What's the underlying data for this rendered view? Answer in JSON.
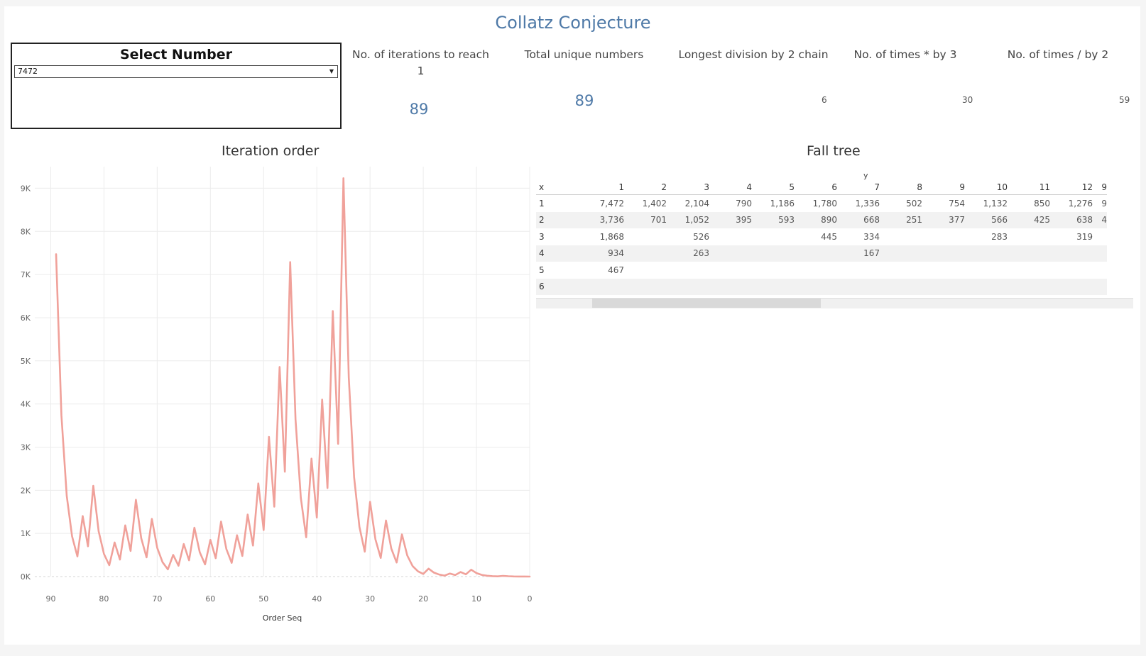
{
  "title": "Collatz Conjecture",
  "selector": {
    "title": "Select Number",
    "value": "7472"
  },
  "kpis": {
    "iterations": {
      "label_line1": "No. of iterations to reach",
      "label_line2": "1",
      "value": "89"
    },
    "unique": {
      "label": "Total unique numbers",
      "value": "89"
    },
    "longest_div2": {
      "label": "Longest division by 2 chain",
      "value": "6"
    },
    "times_mul3": {
      "label": "No. of times * by 3",
      "value": "30"
    },
    "times_div2": {
      "label": "No. of times / by 2",
      "value": "59"
    }
  },
  "line_chart": {
    "title": "Iteration order",
    "xlabel": "Order Seq"
  },
  "fall_tree": {
    "title": "Fall tree",
    "col_axis": "y",
    "row_axis": "x",
    "columns": [
      "1",
      "2",
      "3",
      "4",
      "5",
      "6",
      "7",
      "8",
      "9",
      "10",
      "11",
      "12",
      "9"
    ],
    "rows": [
      {
        "label": "1",
        "cells": [
          "7,472",
          "1,402",
          "2,104",
          "790",
          "1,186",
          "1,780",
          "1,336",
          "502",
          "754",
          "1,132",
          "850",
          "1,276",
          "9"
        ]
      },
      {
        "label": "2",
        "cells": [
          "3,736",
          "701",
          "1,052",
          "395",
          "593",
          "890",
          "668",
          "251",
          "377",
          "566",
          "425",
          "638",
          "4"
        ]
      },
      {
        "label": "3",
        "cells": [
          "1,868",
          "",
          "526",
          "",
          "",
          "445",
          "334",
          "",
          "",
          "283",
          "",
          "319",
          ""
        ]
      },
      {
        "label": "4",
        "cells": [
          "934",
          "",
          "263",
          "",
          "",
          "",
          "167",
          "",
          "",
          "",
          "",
          "",
          ""
        ]
      },
      {
        "label": "5",
        "cells": [
          "467",
          "",
          "",
          "",
          "",
          "",
          "",
          "",
          "",
          "",
          "",
          "",
          ""
        ]
      },
      {
        "label": "6",
        "cells": [
          "",
          "",
          "",
          "",
          "",
          "",
          "",
          "",
          "",
          "",
          "",
          "",
          ""
        ]
      }
    ]
  },
  "chart_data": {
    "type": "line",
    "title": "Iteration order",
    "xlabel": "Order Seq",
    "ylabel": "",
    "xlim": [
      93,
      0
    ],
    "ylim": [
      0,
      9.5
    ],
    "x_ticks": [
      90,
      80,
      70,
      60,
      50,
      40,
      30,
      20,
      10,
      0
    ],
    "x_tick_labels": [
      "90",
      "80",
      "70",
      "60",
      "50",
      "40",
      "30",
      "20",
      "10",
      "0"
    ],
    "y_ticks": [
      0,
      1,
      2,
      3,
      4,
      5,
      6,
      7,
      8,
      9
    ],
    "y_tick_labels": [
      "0K",
      "1K",
      "2K",
      "3K",
      "4K",
      "5K",
      "6K",
      "7K",
      "8K",
      "9K"
    ],
    "grid": true,
    "x": [
      89,
      88,
      87,
      86,
      85,
      84,
      83,
      82,
      81,
      80,
      79,
      78,
      77,
      76,
      75,
      74,
      73,
      72,
      71,
      70,
      69,
      68,
      67,
      66,
      65,
      64,
      63,
      62,
      61,
      60,
      59,
      58,
      57,
      56,
      55,
      54,
      53,
      52,
      51,
      50,
      49,
      48,
      47,
      46,
      45,
      44,
      43,
      42,
      41,
      40,
      39,
      38,
      37,
      36,
      35,
      34,
      33,
      32,
      31,
      30,
      29,
      28,
      27,
      26,
      25,
      24,
      23,
      22,
      21,
      20,
      19,
      18,
      17,
      16,
      15,
      14,
      13,
      12,
      11,
      10,
      9,
      8,
      7,
      6,
      5,
      4,
      3,
      2,
      1,
      0
    ],
    "series": [
      {
        "color": "#f0a19a",
        "values": [
          7.472,
          3.736,
          1.868,
          0.934,
          0.467,
          1.402,
          0.701,
          2.104,
          1.052,
          0.526,
          0.263,
          0.79,
          0.395,
          1.186,
          0.593,
          1.78,
          0.89,
          0.445,
          1.336,
          0.668,
          0.334,
          0.167,
          0.502,
          0.251,
          0.754,
          0.377,
          1.132,
          0.566,
          0.283,
          0.85,
          0.425,
          1.276,
          0.638,
          0.319,
          0.958,
          0.479,
          1.438,
          0.719,
          2.158,
          1.079,
          3.238,
          1.619,
          4.858,
          2.429,
          7.288,
          3.644,
          1.822,
          0.911,
          2.734,
          1.367,
          4.102,
          2.051,
          6.154,
          3.077,
          9.232,
          4.616,
          2.308,
          1.154,
          0.577,
          1.732,
          0.866,
          0.433,
          1.3,
          0.65,
          0.325,
          0.976,
          0.488,
          0.244,
          0.122,
          0.061,
          0.184,
          0.092,
          0.046,
          0.023,
          0.07,
          0.035,
          0.106,
          0.053,
          0.16,
          0.08,
          0.04,
          0.02,
          0.01,
          0.005,
          0.016,
          0.008,
          0.004,
          0.002,
          0.001,
          0.0
        ]
      }
    ]
  }
}
